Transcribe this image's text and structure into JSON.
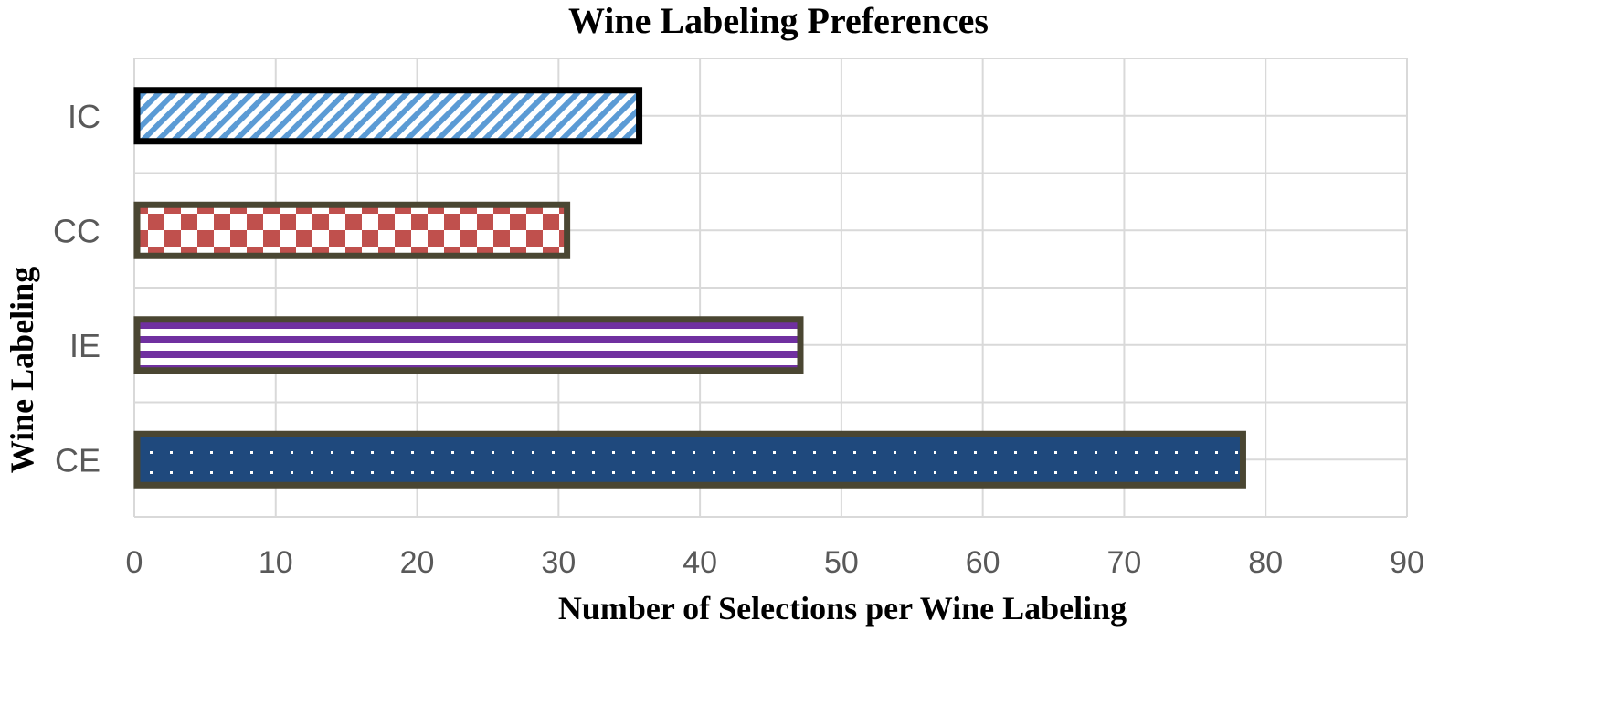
{
  "chart_data": {
    "type": "bar",
    "orientation": "horizontal",
    "title": "Wine Labeling Preferences",
    "xlabel": "Number of  Selections per Wine Labeling",
    "ylabel": "Wine Labeling",
    "categories": [
      "IC",
      "CC",
      "IE",
      "CE"
    ],
    "values": [
      35.7,
      30.6,
      47.1,
      78.4
    ],
    "xlim": [
      0,
      90
    ],
    "xticks": [
      0,
      10,
      20,
      30,
      40,
      50,
      60,
      70,
      80,
      90
    ],
    "grid": true,
    "legend": "none",
    "bar_styles": [
      {
        "pattern": "diagonal-stripes",
        "color": "#5b9bd5",
        "border": "#000000"
      },
      {
        "pattern": "checkerboard",
        "color": "#c0504d",
        "border": "#4a4632"
      },
      {
        "pattern": "horizontal-stripes",
        "color": "#7030a0",
        "border": "#4a4632"
      },
      {
        "pattern": "dots",
        "color": "#1f497d",
        "border": "#4a4632"
      }
    ]
  }
}
